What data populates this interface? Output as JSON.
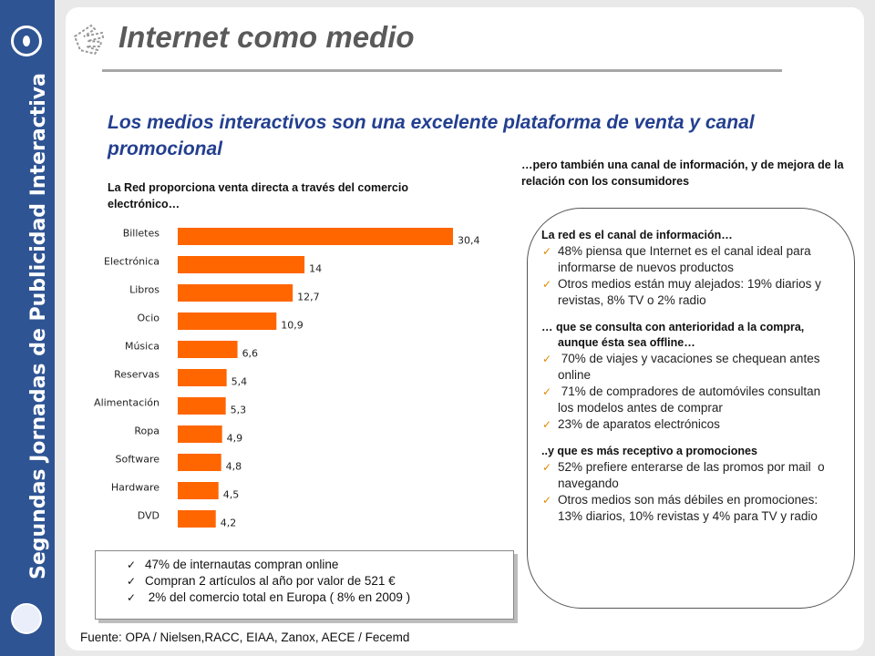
{
  "sidebar": {
    "title": "Segundas Jornadas de Publicidad Interactiva"
  },
  "header": {
    "title": "Internet como medio"
  },
  "subtitle": "Los medios interactivos son una excelente plataforma de venta y canal promocional",
  "chart_caption": "La Red proporciona venta directa a través del comercio electrónico…",
  "right_caption": "…pero también una canal de información,  y de mejora de la relación con los consumidores",
  "chart_data": {
    "type": "bar",
    "orientation": "horizontal",
    "categories": [
      "Billetes",
      "Electrónica",
      "Libros",
      "Ocio",
      "Música",
      "Reservas",
      "Alimentación",
      "Ropa",
      "Software",
      "Hardware",
      "DVD"
    ],
    "values": [
      30.4,
      14,
      12.7,
      10.9,
      6.6,
      5.4,
      5.3,
      4.9,
      4.8,
      4.5,
      4.2
    ],
    "value_labels": [
      "30,4",
      "14",
      "12,7",
      "10,9",
      "6,6",
      "5,4",
      "5,3",
      "4,9",
      "4,8",
      "4,5",
      "4,2"
    ],
    "title": "",
    "xlabel": "",
    "ylabel": "",
    "xlim": [
      0,
      30.4
    ],
    "grid": false,
    "color": "#ff6600"
  },
  "info_box": {
    "items": [
      "47% de internautas compran online",
      "Compran 2 artículos al año por valor de 521 €",
      " 2% del comercio total en Europa ( 8% en 2009 )"
    ]
  },
  "source": "Fuente: OPA / Nielsen,RACC, EIAA, Zanox, AECE / Fecemd",
  "panel": {
    "section1_heading": "La red es el canal de información…",
    "section1_items": [
      "48% piensa que Internet es el canal ideal para informarse de nuevos productos",
      "Otros medios están muy alejados: 19% diarios y revistas, 8% TV o 2% radio"
    ],
    "section2_heading": "… que se consulta con anterioridad a la compra, aunque ésta sea offline…",
    "section2_items": [
      " 70% de viajes y vacaciones se chequean antes online",
      " 71% de compradores de automóviles consultan los modelos antes de comprar",
      "23% de aparatos electrónicos"
    ],
    "section3_heading": "..y que es más receptivo a promociones",
    "section3_items": [
      "52% prefiere enterarse de las promos por mail  o navegando",
      "Otros medios son más débiles en promociones: 13% diarios, 10% revistas y 4% para TV y radio"
    ]
  }
}
